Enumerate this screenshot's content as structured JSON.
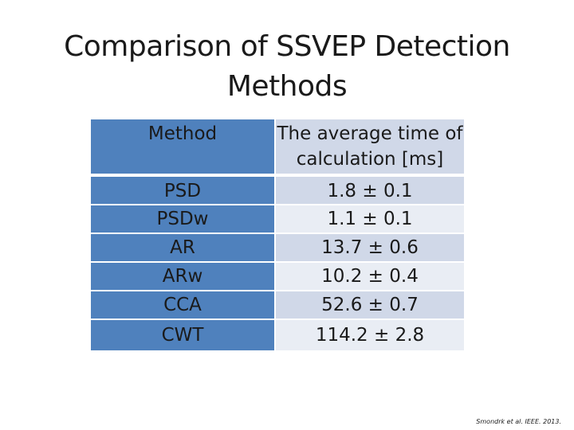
{
  "slide": {
    "title": "Comparison of SSVEP Detection Methods",
    "citation": "Smondrk et al. IEEE. 2013."
  },
  "table": {
    "headers": {
      "method": "Method",
      "time": "The average time of calculation [ms]"
    },
    "rows": [
      {
        "method": "PSD",
        "time": "1.8 ± 0.1"
      },
      {
        "method": "PSDw",
        "time": "1.1 ± 0.1"
      },
      {
        "method": "AR",
        "time": "13.7 ± 0.6"
      },
      {
        "method": "ARw",
        "time": "10.2 ± 0.4"
      },
      {
        "method": "CCA",
        "time": "52.6 ± 0.7"
      },
      {
        "method": "CWT",
        "time": "114.2 ± 2.8"
      }
    ]
  },
  "colors": {
    "method_column": "#4f81bd",
    "time_row_dark": "#d0d8e8",
    "time_row_light": "#e9edf4"
  }
}
